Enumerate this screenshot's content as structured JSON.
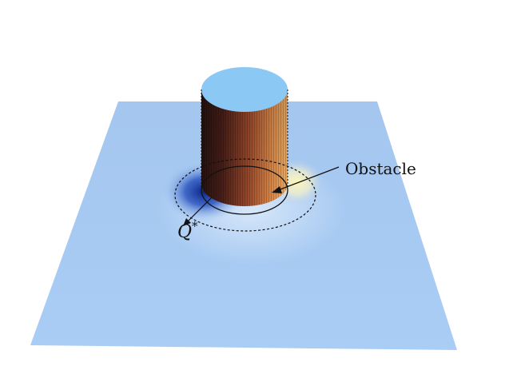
{
  "figure": {
    "obstacle_label": "Obstacle",
    "q_label": "Q",
    "q_superscript": "*"
  },
  "colors": {
    "background": "#ffffff",
    "plane": "#a9cbf2",
    "cylinder_top": "#8cc8f4",
    "cylinder_dark": "#2a1410",
    "cylinder_mid": "#9a4a2c",
    "cylinder_light": "#e8a05c",
    "glow_yellow": "#fff3b0",
    "shadow_blue": "#0b2a8a",
    "line": "#111111"
  }
}
